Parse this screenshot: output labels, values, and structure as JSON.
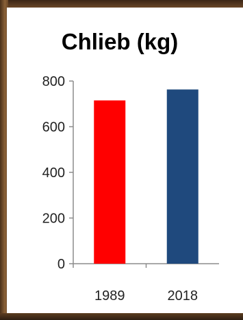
{
  "chart_data": {
    "type": "bar",
    "title": "Chlieb (kg)",
    "categories": [
      "1989",
      "2018"
    ],
    "values": [
      715,
      763
    ],
    "colors": [
      "#ff0000",
      "#1f497d"
    ],
    "ylim": [
      0,
      800
    ],
    "yticks": [
      "0",
      "200",
      "400",
      "600",
      "800"
    ],
    "xlabel": "",
    "ylabel": "",
    "grid": false
  }
}
